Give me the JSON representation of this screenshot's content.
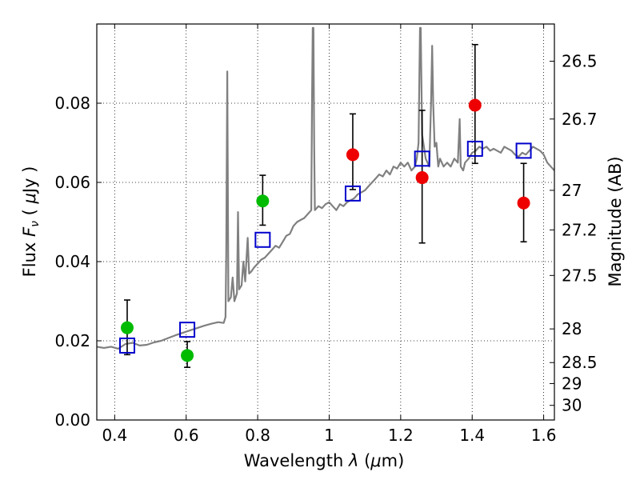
{
  "chart_data": {
    "type": "scatter",
    "xlabel": "Wavelength  λ (μm)",
    "ylabel": "Flux  Fν  ( μJy )",
    "ylabel_right": "Magnitude (AB)",
    "xlim": [
      0.35,
      1.63
    ],
    "ylim": [
      0.0,
      0.1
    ],
    "grid": true,
    "x_ticks": [
      0.4,
      0.6,
      0.8,
      1.0,
      1.2,
      1.4,
      1.6
    ],
    "x_tick_labels": [
      "0.4",
      "0.6",
      "0.8",
      "1",
      "1.2",
      "1.4",
      "1.6"
    ],
    "y_ticks": [
      0.0,
      0.02,
      0.04,
      0.06,
      0.08
    ],
    "y_tick_labels": [
      "0.00",
      "0.02",
      "0.04",
      "0.06",
      "0.08"
    ],
    "right_ticks": [
      {
        "label": "26.5",
        "flux": 0.0906
      },
      {
        "label": "26.7",
        "flux": 0.076
      },
      {
        "label": "27",
        "flux": 0.058
      },
      {
        "label": "27.2",
        "flux": 0.048
      },
      {
        "label": "27.5",
        "flux": 0.0365
      },
      {
        "label": "28",
        "flux": 0.023
      },
      {
        "label": "28.5",
        "flux": 0.0145
      },
      {
        "label": "29",
        "flux": 0.0092
      },
      {
        "label": "30",
        "flux": 0.0037
      }
    ],
    "colors": {
      "spectrum": "#808080",
      "green_points": "#00bb00",
      "red_points": "#ee0000",
      "model_squares": "#0000cc",
      "error_bars": "#000000"
    },
    "spectrum": [
      [
        0.35,
        0.0185
      ],
      [
        0.37,
        0.0182
      ],
      [
        0.39,
        0.0185
      ],
      [
        0.41,
        0.018
      ],
      [
        0.43,
        0.0192
      ],
      [
        0.45,
        0.0195
      ],
      [
        0.47,
        0.0188
      ],
      [
        0.49,
        0.019
      ],
      [
        0.51,
        0.0196
      ],
      [
        0.53,
        0.02
      ],
      [
        0.55,
        0.0207
      ],
      [
        0.57,
        0.0214
      ],
      [
        0.59,
        0.022
      ],
      [
        0.61,
        0.0226
      ],
      [
        0.63,
        0.0232
      ],
      [
        0.65,
        0.0238
      ],
      [
        0.67,
        0.0243
      ],
      [
        0.69,
        0.0247
      ],
      [
        0.705,
        0.0245
      ],
      [
        0.71,
        0.026
      ],
      [
        0.712,
        0.042
      ],
      [
        0.715,
        0.088
      ],
      [
        0.718,
        0.03
      ],
      [
        0.725,
        0.031
      ],
      [
        0.73,
        0.036
      ],
      [
        0.735,
        0.03
      ],
      [
        0.742,
        0.032
      ],
      [
        0.745,
        0.0525
      ],
      [
        0.748,
        0.033
      ],
      [
        0.755,
        0.034
      ],
      [
        0.76,
        0.04
      ],
      [
        0.765,
        0.035
      ],
      [
        0.772,
        0.046
      ],
      [
        0.776,
        0.037
      ],
      [
        0.782,
        0.0375
      ],
      [
        0.79,
        0.0385
      ],
      [
        0.8,
        0.0395
      ],
      [
        0.81,
        0.0405
      ],
      [
        0.82,
        0.041
      ],
      [
        0.83,
        0.042
      ],
      [
        0.84,
        0.043
      ],
      [
        0.85,
        0.044
      ],
      [
        0.86,
        0.0435
      ],
      [
        0.87,
        0.045
      ],
      [
        0.88,
        0.0465
      ],
      [
        0.89,
        0.047
      ],
      [
        0.9,
        0.049
      ],
      [
        0.91,
        0.05
      ],
      [
        0.92,
        0.0505
      ],
      [
        0.93,
        0.051
      ],
      [
        0.94,
        0.052
      ],
      [
        0.95,
        0.053
      ],
      [
        0.952,
        0.08
      ],
      [
        0.954,
        0.099
      ],
      [
        0.956,
        0.099
      ],
      [
        0.958,
        0.07
      ],
      [
        0.96,
        0.053
      ],
      [
        0.97,
        0.054
      ],
      [
        0.98,
        0.0535
      ],
      [
        0.99,
        0.0545
      ],
      [
        1.0,
        0.055
      ],
      [
        1.01,
        0.054
      ],
      [
        1.02,
        0.053
      ],
      [
        1.03,
        0.0545
      ],
      [
        1.04,
        0.054
      ],
      [
        1.05,
        0.055
      ],
      [
        1.06,
        0.0555
      ],
      [
        1.07,
        0.056
      ],
      [
        1.08,
        0.057
      ],
      [
        1.09,
        0.0575
      ],
      [
        1.1,
        0.058
      ],
      [
        1.11,
        0.059
      ],
      [
        1.12,
        0.06
      ],
      [
        1.13,
        0.061
      ],
      [
        1.14,
        0.062
      ],
      [
        1.15,
        0.0615
      ],
      [
        1.16,
        0.063
      ],
      [
        1.17,
        0.062
      ],
      [
        1.18,
        0.064
      ],
      [
        1.19,
        0.0635
      ],
      [
        1.2,
        0.065
      ],
      [
        1.21,
        0.064
      ],
      [
        1.22,
        0.065
      ],
      [
        1.23,
        0.063
      ],
      [
        1.24,
        0.064
      ],
      [
        1.245,
        0.066
      ],
      [
        1.25,
        0.07
      ],
      [
        1.252,
        0.085
      ],
      [
        1.254,
        0.099
      ],
      [
        1.256,
        0.099
      ],
      [
        1.258,
        0.085
      ],
      [
        1.26,
        0.072
      ],
      [
        1.27,
        0.066
      ],
      [
        1.28,
        0.064
      ],
      [
        1.285,
        0.08
      ],
      [
        1.288,
        0.0945
      ],
      [
        1.291,
        0.08
      ],
      [
        1.295,
        0.069
      ],
      [
        1.3,
        0.07
      ],
      [
        1.305,
        0.064
      ],
      [
        1.31,
        0.066
      ],
      [
        1.32,
        0.064
      ],
      [
        1.33,
        0.065
      ],
      [
        1.34,
        0.064
      ],
      [
        1.35,
        0.066
      ],
      [
        1.36,
        0.065
      ],
      [
        1.365,
        0.076
      ],
      [
        1.368,
        0.064
      ],
      [
        1.375,
        0.063
      ],
      [
        1.38,
        0.065
      ],
      [
        1.39,
        0.066
      ],
      [
        1.4,
        0.0675
      ],
      [
        1.41,
        0.068
      ],
      [
        1.42,
        0.069
      ],
      [
        1.43,
        0.0685
      ],
      [
        1.44,
        0.069
      ],
      [
        1.45,
        0.068
      ],
      [
        1.46,
        0.0685
      ],
      [
        1.47,
        0.068
      ],
      [
        1.48,
        0.0675
      ],
      [
        1.49,
        0.069
      ],
      [
        1.5,
        0.0685
      ],
      [
        1.51,
        0.068
      ],
      [
        1.52,
        0.067
      ],
      [
        1.53,
        0.0665
      ],
      [
        1.54,
        0.0675
      ],
      [
        1.55,
        0.067
      ],
      [
        1.56,
        0.068
      ],
      [
        1.57,
        0.069
      ],
      [
        1.58,
        0.0685
      ],
      [
        1.59,
        0.068
      ],
      [
        1.6,
        0.067
      ],
      [
        1.61,
        0.065
      ],
      [
        1.62,
        0.064
      ],
      [
        1.63,
        0.063
      ]
    ],
    "green_points": [
      {
        "x": 0.435,
        "y": 0.0233,
        "err_low": 0.0165,
        "err_high": 0.0303
      },
      {
        "x": 0.603,
        "y": 0.0163,
        "err_low": 0.0133,
        "err_high": 0.0198
      },
      {
        "x": 0.814,
        "y": 0.0553,
        "err_low": 0.0492,
        "err_high": 0.0618
      }
    ],
    "red_points": [
      {
        "x": 1.066,
        "y": 0.067,
        "err_low": 0.0582,
        "err_high": 0.0773
      },
      {
        "x": 1.26,
        "y": 0.0612,
        "err_low": 0.0447,
        "err_high": 0.0782
      },
      {
        "x": 1.408,
        "y": 0.0795,
        "err_low": 0.0648,
        "err_high": 0.0948
      },
      {
        "x": 1.544,
        "y": 0.0548,
        "err_low": 0.045,
        "err_high": 0.0648
      }
    ],
    "model_squares": [
      {
        "x": 0.435,
        "y": 0.0188
      },
      {
        "x": 0.603,
        "y": 0.0228
      },
      {
        "x": 0.814,
        "y": 0.0455
      },
      {
        "x": 1.066,
        "y": 0.0572
      },
      {
        "x": 1.26,
        "y": 0.066
      },
      {
        "x": 1.408,
        "y": 0.0685
      },
      {
        "x": 1.544,
        "y": 0.068
      }
    ]
  }
}
